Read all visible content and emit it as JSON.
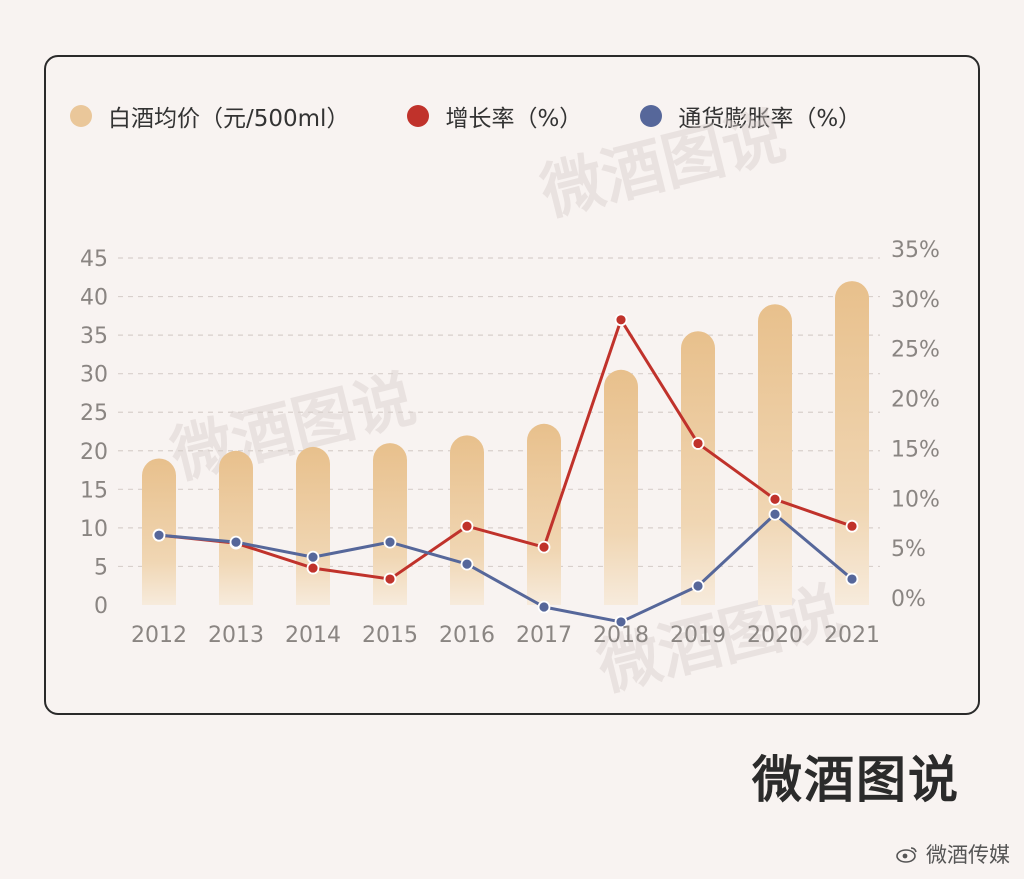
{
  "chart_data": {
    "type": "bar+line",
    "categories": [
      "2012",
      "2013",
      "2014",
      "2015",
      "2016",
      "2017",
      "2018",
      "2019",
      "2020",
      "2021"
    ],
    "series": [
      {
        "name": "白酒均价（元/500ml）",
        "type": "bar",
        "axis": "left",
        "color": "#eac79a",
        "values": [
          19,
          20,
          20.5,
          21,
          22,
          23.5,
          30.5,
          35.5,
          39,
          42
        ]
      },
      {
        "name": "增长率（%）",
        "type": "line",
        "axis": "right",
        "color": "#c0322b",
        "values": [
          6.2,
          5.4,
          2.9,
          1.8,
          7.1,
          5.0,
          27.8,
          15.4,
          9.8,
          7.1
        ]
      },
      {
        "name": "通货膨胀率（%）",
        "type": "line",
        "axis": "right",
        "color": "#56679a",
        "values": [
          6.2,
          5.5,
          4.0,
          5.5,
          3.3,
          -1.0,
          -2.5,
          1.1,
          8.3,
          1.8
        ]
      }
    ],
    "y_left": {
      "ticks": [
        "0",
        "5",
        "10",
        "15",
        "20",
        "25",
        "30",
        "35",
        "40",
        "45"
      ],
      "ylim": [
        0,
        45
      ]
    },
    "y_right": {
      "ticks": [
        "0%",
        "5%",
        "10%",
        "15%",
        "20%",
        "25%",
        "30%",
        "35%"
      ],
      "ylim": [
        0,
        35
      ]
    },
    "grid": true,
    "legend_position": "top-left"
  },
  "watermark": "微酒图说",
  "brand": "微酒图说",
  "footer": {
    "weibo_label": "微酒传媒"
  }
}
